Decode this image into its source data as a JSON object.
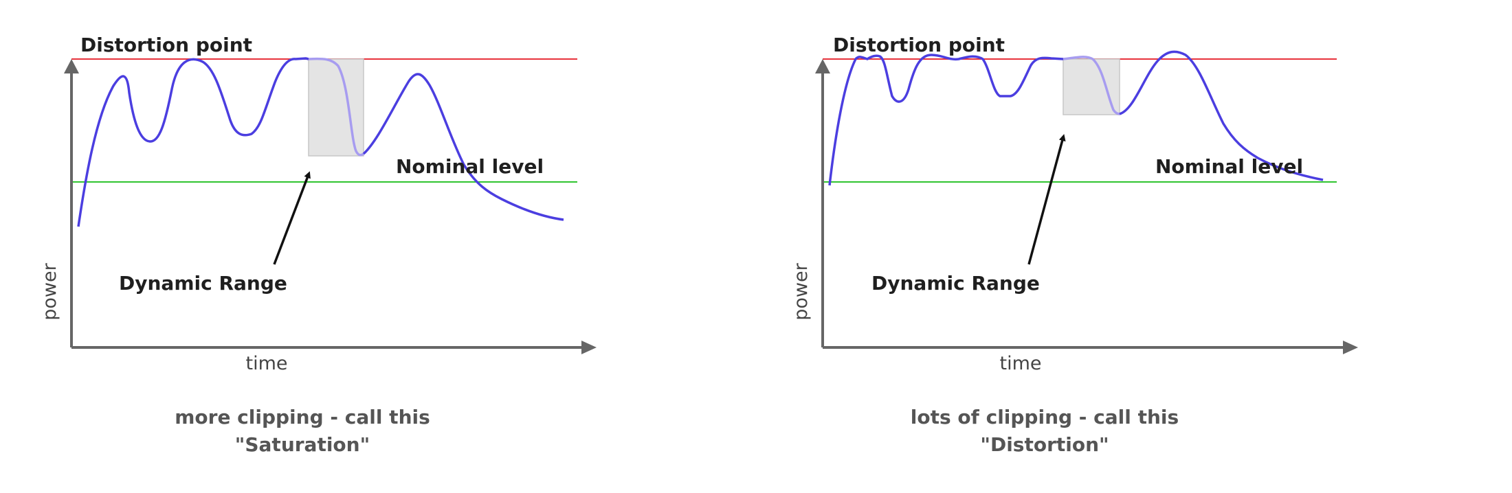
{
  "colors": {
    "distortion_line": "#e8323c",
    "nominal_line": "#2fc42f",
    "signal": "#4b3ee0",
    "signal_faded": "#a79cf0",
    "axis": "#666666",
    "range_box_fill": "#e4e4e4",
    "range_box_stroke": "#c6c6c6",
    "label_text": "#1f1f1f",
    "caption_text": "#555555"
  },
  "icons": {
    "axis_arrows": "arrow-head-icon",
    "pointer": "arrow-icon"
  },
  "panels": [
    {
      "distortion_label": "Distortion point",
      "nominal_label": "Nominal level",
      "dynamic_range_label": "Dynamic Range",
      "x_axis_label": "time",
      "y_axis_label": "power",
      "caption_line1": "more clipping - call this",
      "caption_line2": "\"Saturation\""
    },
    {
      "distortion_label": "Distortion point",
      "nominal_label": "Nominal level",
      "dynamic_range_label": "Dynamic Range",
      "x_axis_label": "time",
      "y_axis_label": "power",
      "caption_line1": "lots of clipping - call this",
      "caption_line2": "\"Distortion\""
    }
  ]
}
